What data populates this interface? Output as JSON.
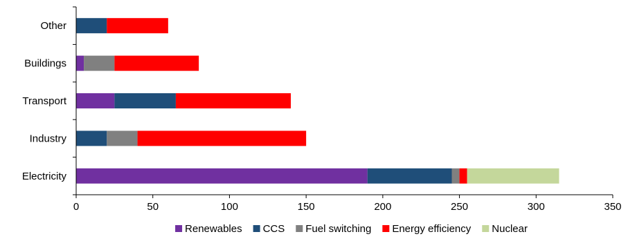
{
  "chart_data": {
    "type": "bar",
    "orientation": "horizontal",
    "stacked": true,
    "title": "",
    "xlabel": "",
    "ylabel": "",
    "categories": [
      "Electricity",
      "Industry",
      "Transport",
      "Buildings",
      "Other"
    ],
    "series": [
      {
        "name": "Renewables",
        "color": "#7030A0",
        "values": [
          190,
          0,
          25,
          5,
          0
        ]
      },
      {
        "name": "CCS",
        "color": "#1F4E79",
        "values": [
          55,
          20,
          40,
          0,
          20
        ]
      },
      {
        "name": "Fuel switching",
        "color": "#808080",
        "values": [
          5,
          20,
          0,
          20,
          0
        ]
      },
      {
        "name": "Energy efficiency",
        "color": "#FF0000",
        "values": [
          5,
          110,
          75,
          55,
          40
        ]
      },
      {
        "name": "Nuclear",
        "color": "#C4D79B",
        "values": [
          60,
          0,
          0,
          0,
          0
        ]
      }
    ],
    "xlim": [
      0,
      350
    ],
    "xticks": [
      0,
      50,
      100,
      150,
      200,
      250,
      300,
      350
    ],
    "grid": false,
    "legend_position": "bottom"
  }
}
